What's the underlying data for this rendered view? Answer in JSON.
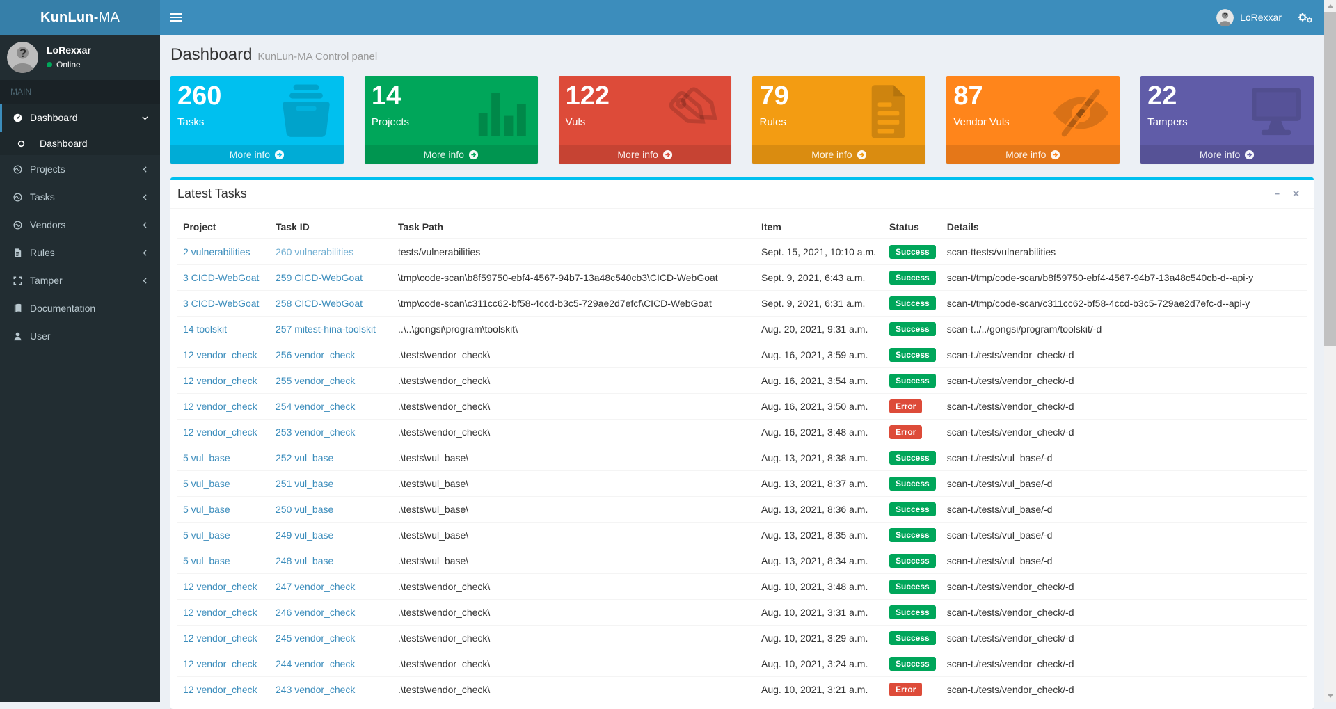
{
  "colors": {
    "navbar": "#3c8dbc",
    "brand_bg": "#367fa9",
    "sidebar": "#222d32",
    "sidebar_active_bg": "#1e282c",
    "submenu_bg": "#2c3b41",
    "panel_top": "#00c0ef",
    "link": "#3c8dbc",
    "link_light": "#72afd2",
    "success": "#00a65a",
    "error": "#dd4b39",
    "content_bg": "#ecf0f5"
  },
  "navbar": {
    "brand_bold": "KunLun-",
    "brand_light": "MA",
    "user_name": "LoRexxar"
  },
  "sidebar": {
    "user": {
      "name": "LoRexxar",
      "status": "Online"
    },
    "section_header": "MAIN",
    "items": [
      {
        "label": "Dashboard",
        "icon": "gauge-icon",
        "chevron": "down",
        "active": true,
        "children": [
          {
            "label": "Dashboard",
            "active": true
          }
        ]
      },
      {
        "label": "Projects",
        "icon": "wave-circle-icon",
        "chevron": "left"
      },
      {
        "label": "Tasks",
        "icon": "wave-circle-icon",
        "chevron": "left"
      },
      {
        "label": "Vendors",
        "icon": "wave-circle-icon",
        "chevron": "left"
      },
      {
        "label": "Rules",
        "icon": "file-icon",
        "chevron": "left"
      },
      {
        "label": "Tamper",
        "icon": "expand-icon",
        "chevron": "left"
      },
      {
        "label": "Documentation",
        "icon": "book-icon"
      },
      {
        "label": "User",
        "icon": "person-icon"
      }
    ]
  },
  "header": {
    "title": "Dashboard",
    "subtitle": "KunLun-MA Control panel"
  },
  "stat_boxes": [
    {
      "value": "260",
      "label": "Tasks",
      "color": "#00c0ef",
      "icon": "storage-box-icon",
      "more_label": "More info"
    },
    {
      "value": "14",
      "label": "Projects",
      "color": "#00a65a",
      "icon": "bar-chart-icon",
      "more_label": "More info"
    },
    {
      "value": "122",
      "label": "Vuls",
      "color": "#dd4b39",
      "icon": "price-tags-icon",
      "more_label": "More info"
    },
    {
      "value": "79",
      "label": "Rules",
      "color": "#f39c12",
      "icon": "document-icon",
      "more_label": "More info"
    },
    {
      "value": "87",
      "label": "Vendor Vuls",
      "color": "#ff851b",
      "icon": "eye-slash-icon",
      "more_label": "More info"
    },
    {
      "value": "22",
      "label": "Tampers",
      "color": "#605ca8",
      "icon": "monitor-icon",
      "more_label": "More info"
    }
  ],
  "panel": {
    "title": "Latest Tasks",
    "minimize_glyph": "−",
    "close_glyph": "✕",
    "table": {
      "columns": [
        "Project",
        "Task ID",
        "Task Path",
        "Item",
        "Status",
        "Details"
      ],
      "status_colors": {
        "Success": "#00a65a",
        "Error": "#dd4b39"
      },
      "rows": [
        {
          "project": "2 vulnerabilities",
          "task_id": "260 vulnerabilities",
          "task_id_light": true,
          "task_path": "tests/vulnerabilities",
          "item": "Sept. 15, 2021, 10:10 a.m.",
          "status": "Success",
          "details": "scan-ttests/vulnerabilities"
        },
        {
          "project": "3 CICD-WebGoat",
          "task_id": "259 CICD-WebGoat",
          "task_path": "\\tmp\\code-scan\\b8f59750-ebf4-4567-94b7-13a48c540cb3\\CICD-WebGoat",
          "item": "Sept. 9, 2021, 6:43 a.m.",
          "status": "Success",
          "details": "scan-t/tmp/code-scan/b8f59750-ebf4-4567-94b7-13a48c540cb-d--api-y"
        },
        {
          "project": "3 CICD-WebGoat",
          "task_id": "258 CICD-WebGoat",
          "task_path": "\\tmp\\code-scan\\c311cc62-bf58-4ccd-b3c5-729ae2d7efcf\\CICD-WebGoat",
          "item": "Sept. 9, 2021, 6:31 a.m.",
          "status": "Success",
          "details": "scan-t/tmp/code-scan/c311cc62-bf58-4ccd-b3c5-729ae2d7efc-d--api-y"
        },
        {
          "project": "14 toolskit",
          "task_id": "257 mitest-hina-toolskit",
          "task_path": "..\\..\\gongsi\\program\\toolskit\\",
          "item": "Aug. 20, 2021, 9:31 a.m.",
          "status": "Success",
          "details": "scan-t../../gongsi/program/toolskit/-d"
        },
        {
          "project": "12 vendor_check",
          "task_id": "256 vendor_check",
          "task_path": ".\\tests\\vendor_check\\",
          "item": "Aug. 16, 2021, 3:59 a.m.",
          "status": "Success",
          "details": "scan-t./tests/vendor_check/-d"
        },
        {
          "project": "12 vendor_check",
          "task_id": "255 vendor_check",
          "task_path": ".\\tests\\vendor_check\\",
          "item": "Aug. 16, 2021, 3:54 a.m.",
          "status": "Success",
          "details": "scan-t./tests/vendor_check/-d"
        },
        {
          "project": "12 vendor_check",
          "task_id": "254 vendor_check",
          "task_path": ".\\tests\\vendor_check\\",
          "item": "Aug. 16, 2021, 3:50 a.m.",
          "status": "Error",
          "details": "scan-t./tests/vendor_check/-d"
        },
        {
          "project": "12 vendor_check",
          "task_id": "253 vendor_check",
          "task_path": ".\\tests\\vendor_check\\",
          "item": "Aug. 16, 2021, 3:48 a.m.",
          "status": "Error",
          "details": "scan-t./tests/vendor_check/-d"
        },
        {
          "project": "5 vul_base",
          "task_id": "252 vul_base",
          "task_path": ".\\tests\\vul_base\\",
          "item": "Aug. 13, 2021, 8:38 a.m.",
          "status": "Success",
          "details": "scan-t./tests/vul_base/-d"
        },
        {
          "project": "5 vul_base",
          "task_id": "251 vul_base",
          "task_path": ".\\tests\\vul_base\\",
          "item": "Aug. 13, 2021, 8:37 a.m.",
          "status": "Success",
          "details": "scan-t./tests/vul_base/-d"
        },
        {
          "project": "5 vul_base",
          "task_id": "250 vul_base",
          "task_path": ".\\tests\\vul_base\\",
          "item": "Aug. 13, 2021, 8:36 a.m.",
          "status": "Success",
          "details": "scan-t./tests/vul_base/-d"
        },
        {
          "project": "5 vul_base",
          "task_id": "249 vul_base",
          "task_path": ".\\tests\\vul_base\\",
          "item": "Aug. 13, 2021, 8:35 a.m.",
          "status": "Success",
          "details": "scan-t./tests/vul_base/-d"
        },
        {
          "project": "5 vul_base",
          "task_id": "248 vul_base",
          "task_path": ".\\tests\\vul_base\\",
          "item": "Aug. 13, 2021, 8:34 a.m.",
          "status": "Success",
          "details": "scan-t./tests/vul_base/-d"
        },
        {
          "project": "12 vendor_check",
          "task_id": "247 vendor_check",
          "task_path": ".\\tests\\vendor_check\\",
          "item": "Aug. 10, 2021, 3:48 a.m.",
          "status": "Success",
          "details": "scan-t./tests/vendor_check/-d"
        },
        {
          "project": "12 vendor_check",
          "task_id": "246 vendor_check",
          "task_path": ".\\tests\\vendor_check\\",
          "item": "Aug. 10, 2021, 3:31 a.m.",
          "status": "Success",
          "details": "scan-t./tests/vendor_check/-d"
        },
        {
          "project": "12 vendor_check",
          "task_id": "245 vendor_check",
          "task_path": ".\\tests\\vendor_check\\",
          "item": "Aug. 10, 2021, 3:29 a.m.",
          "status": "Success",
          "details": "scan-t./tests/vendor_check/-d"
        },
        {
          "project": "12 vendor_check",
          "task_id": "244 vendor_check",
          "task_path": ".\\tests\\vendor_check\\",
          "item": "Aug. 10, 2021, 3:24 a.m.",
          "status": "Success",
          "details": "scan-t./tests/vendor_check/-d"
        },
        {
          "project": "12 vendor_check",
          "task_id": "243 vendor_check",
          "task_path": ".\\tests\\vendor_check\\",
          "item": "Aug. 10, 2021, 3:21 a.m.",
          "status": "Error",
          "details": "scan-t./tests/vendor_check/-d"
        }
      ]
    }
  }
}
